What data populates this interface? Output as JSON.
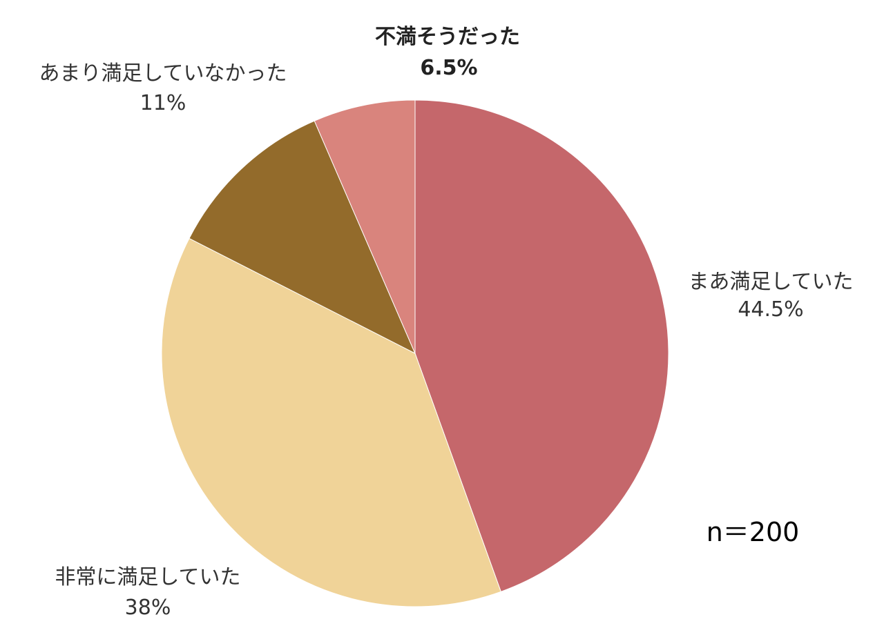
{
  "chart_data": {
    "type": "pie",
    "start": "top",
    "direction": "clockwise",
    "slices": [
      {
        "label": "まあ満足していた",
        "value": 44.5,
        "value_text": "44.5%",
        "color": "#c5676b",
        "emphasis": false
      },
      {
        "label": "非常に満足していた",
        "value": 38,
        "value_text": "38%",
        "color": "#f0d398",
        "emphasis": false
      },
      {
        "label": "あまり満足していなかった",
        "value": 11,
        "value_text": "11%",
        "color": "#936b2b",
        "emphasis": false
      },
      {
        "label": "不満そうだった",
        "value": 6.5,
        "value_text": "6.5%",
        "color": "#d9847d",
        "emphasis": true
      }
    ],
    "annotation": "n＝200"
  }
}
